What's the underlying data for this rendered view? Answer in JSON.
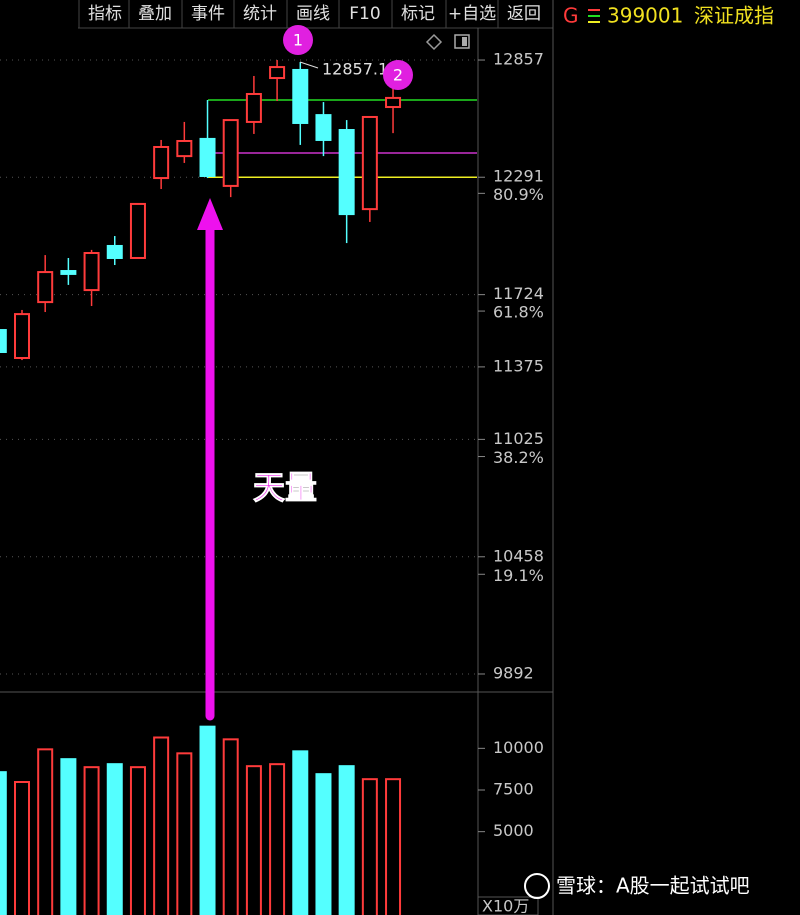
{
  "toolbar": [
    "指标",
    "叠加",
    "事件",
    "统计",
    "画线",
    "F10",
    "标记",
    "+自选",
    "返回"
  ],
  "header": {
    "marker": "G",
    "code": "399001",
    "name": "深证成指"
  },
  "watermark": "雪球：A股一起试试吧",
  "chart_data": [
    {
      "type": "candlestick",
      "categories": [
        null,
        null,
        null,
        null,
        null,
        null,
        null,
        null,
        null,
        null,
        null,
        null,
        null,
        null,
        null,
        null,
        null,
        null
      ],
      "open": [
        11553,
        11418,
        11688,
        11838,
        11746,
        11959,
        11901,
        12287,
        12393,
        12476,
        12249,
        12558,
        12770,
        12809,
        12591,
        12519,
        12137,
        12630
      ],
      "high": [
        11640,
        11650,
        11915,
        11901,
        11940,
        12007,
        12162,
        12471,
        12558,
        12664,
        12567,
        12780,
        12857,
        12847,
        12654,
        12567,
        12582,
        12722
      ],
      "low": [
        11384,
        11408,
        11640,
        11771,
        11669,
        11867,
        11901,
        12234,
        12360,
        12287,
        12195,
        12500,
        12659,
        12447,
        12393,
        11973,
        12075,
        12504
      ],
      "close": [
        11447,
        11630,
        11833,
        11824,
        11925,
        11901,
        12162,
        12437,
        12466,
        12297,
        12567,
        12693,
        12823,
        12553,
        12471,
        12113,
        12582,
        12674
      ],
      "up_color": "#ff3b3b",
      "down_color": "#54ffff",
      "ylim": [
        9805,
        13002
      ],
      "yticks": [
        12857,
        12291,
        11724,
        11375,
        11025,
        10458,
        9892
      ],
      "y2lim": [
        0,
        107.4
      ],
      "y2ticks": [
        {
          "value": 80.9,
          "label": "80.9%"
        },
        {
          "value": 61.8,
          "label": "61.8%"
        },
        {
          "value": 38.2,
          "label": "38.2%"
        },
        {
          "value": 19.1,
          "label": "19.1%"
        }
      ],
      "grid": true,
      "hlines": [
        {
          "value": 12664,
          "color": "#22dd22"
        },
        {
          "value": 12408,
          "color": "#cc33cc"
        },
        {
          "value": 12291,
          "color": "#eeee22"
        }
      ],
      "annotations": [
        "12857.1",
        "1",
        "2",
        "天量"
      ]
    },
    {
      "type": "bar",
      "values": [
        8570,
        7980,
        9940,
        9350,
        8870,
        9050,
        8870,
        10650,
        9700,
        11300,
        10540,
        8930,
        9050,
        9820,
        8450,
        8930,
        8150,
        8150
      ],
      "ylim": [
        0,
        12900
      ],
      "yticks": [
        10000,
        7500,
        5000
      ],
      "unit": "X10万"
    }
  ]
}
